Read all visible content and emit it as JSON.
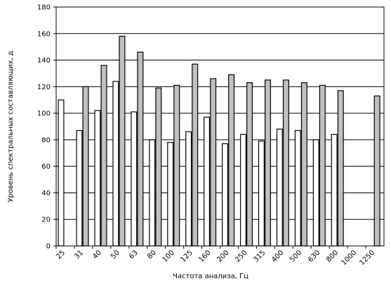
{
  "chart_data": {
    "type": "bar",
    "x_label": "Частота анализа, Гц",
    "y_label": "Уровень спектральных составляющих, д",
    "categories": [
      "25",
      "31",
      "40",
      "50",
      "63",
      "80",
      "100",
      "125",
      "160",
      "200",
      "250",
      "315",
      "400",
      "500",
      "630",
      "800",
      "1000",
      "1250"
    ],
    "series": [
      {
        "color": "#ffffff",
        "values": [
          110,
          87,
          102,
          124,
          101,
          80,
          78,
          86,
          97,
          77,
          84,
          79,
          88,
          87,
          80,
          84,
          null,
          null
        ]
      },
      {
        "color": "#c0c0c0",
        "values": [
          null,
          120,
          136,
          158,
          146,
          119,
          121,
          137,
          126,
          129,
          123,
          125,
          125,
          123,
          121,
          117,
          null,
          113
        ]
      }
    ],
    "ylim": [
      0,
      180
    ],
    "yticks": [
      0,
      20,
      40,
      60,
      80,
      100,
      120,
      140,
      160,
      180
    ],
    "grid": true
  }
}
